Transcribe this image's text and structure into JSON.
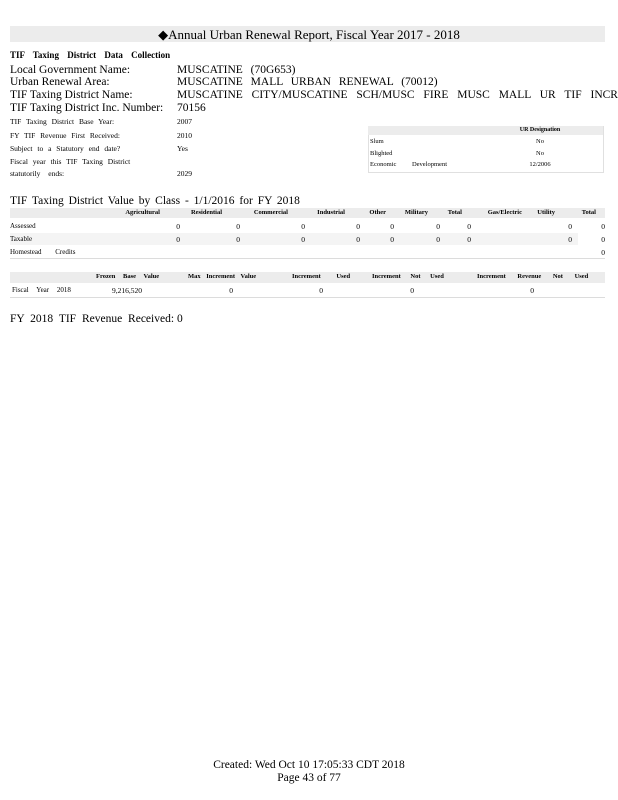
{
  "title": {
    "icon": "diamond-icon",
    "text": "Annual Urban Renewal Report, Fiscal Year 2017 - 2018"
  },
  "section_heading": "TIF Taxing District Data Collection",
  "fields": [
    {
      "label": "Local Government Name:",
      "value": "MUSCATINE (70G653)"
    },
    {
      "label": "Urban Renewal Area:",
      "value": "MUSCATINE MALL URBAN RENEWAL (70012)"
    },
    {
      "label": "TIF Taxing District Name:",
      "value": "MUSCATINE CITY/MUSCATINE SCH/MUSC FIRE MUSC MALL UR TIF INCREM"
    },
    {
      "label": "TIF Taxing District Inc. Number:",
      "value": "70156"
    }
  ],
  "small_fields": [
    {
      "label": "TIF Taxing District Base Year:",
      "value": "2007"
    },
    {
      "label": "FY TIF Revenue First Received:",
      "value": "2010"
    },
    {
      "label": "Subject to a Statutory end date?",
      "value": "Yes"
    },
    {
      "label": "Fiscal year this TIF Taxing District",
      "value": ""
    },
    {
      "label": "statutorily ends:",
      "value": "2029"
    }
  ],
  "designation": {
    "header": "UR Designation",
    "rows": [
      {
        "label": "Slum",
        "value": "No"
      },
      {
        "label": "Blighted",
        "value": "No"
      },
      {
        "label": "Economic Development",
        "value": "12/2006"
      }
    ]
  },
  "value_by_class": {
    "title": "TIF Taxing District Value by Class - 1/1/2016 for FY 2018",
    "columns": [
      "Agricultural",
      "Residential",
      "Commercial",
      "Industrial",
      "Other",
      "Military",
      "Total",
      "Gas/Electric",
      "Utility",
      "Total"
    ],
    "rows": [
      {
        "label": "Assessed",
        "values": [
          "0",
          "0",
          "0",
          "0",
          "0",
          "0",
          "0",
          "",
          "0",
          "0"
        ]
      },
      {
        "label": "Taxable",
        "values": [
          "0",
          "0",
          "0",
          "0",
          "0",
          "0",
          "0",
          "",
          "0",
          "0"
        ]
      },
      {
        "label": "Homestead Credits",
        "values": [
          "",
          "",
          "",
          "",
          "",
          "",
          "",
          "",
          "",
          "0"
        ]
      }
    ]
  },
  "increment": {
    "columns": [
      "Frozen Base Value",
      "Max Increment Value",
      "Increment Used",
      "Increment Not Used",
      "Increment Revenue Not Used"
    ],
    "row": {
      "label": "Fiscal Year 2018",
      "values": [
        "9,216,520",
        "0",
        "0",
        "0",
        "0"
      ]
    }
  },
  "revenue_received": {
    "label": "FY 2018 TIF Revenue Received:",
    "value": "0"
  },
  "footer": {
    "created": "Created: Wed Oct 10 17:05:33 CDT 2018",
    "page": "Page 43 of 77"
  }
}
